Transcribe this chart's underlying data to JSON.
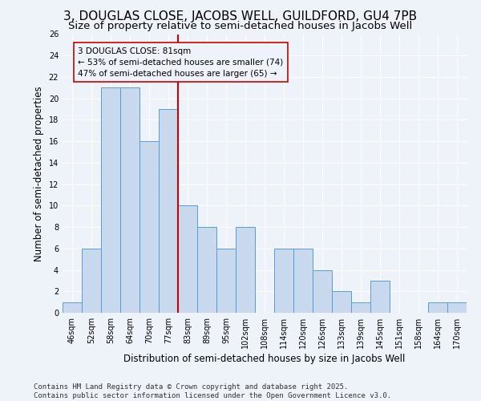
{
  "title": "3, DOUGLAS CLOSE, JACOBS WELL, GUILDFORD, GU4 7PB",
  "subtitle": "Size of property relative to semi-detached houses in Jacobs Well",
  "xlabel": "Distribution of semi-detached houses by size in Jacobs Well",
  "ylabel": "Number of semi-detached properties",
  "footnote": "Contains HM Land Registry data © Crown copyright and database right 2025.\nContains public sector information licensed under the Open Government Licence v3.0.",
  "categories": [
    "46sqm",
    "52sqm",
    "58sqm",
    "64sqm",
    "70sqm",
    "77sqm",
    "83sqm",
    "89sqm",
    "95sqm",
    "102sqm",
    "108sqm",
    "114sqm",
    "120sqm",
    "126sqm",
    "133sqm",
    "139sqm",
    "145sqm",
    "151sqm",
    "158sqm",
    "164sqm",
    "170sqm"
  ],
  "values": [
    1,
    6,
    21,
    21,
    16,
    19,
    10,
    8,
    6,
    8,
    0,
    6,
    6,
    4,
    2,
    1,
    3,
    0,
    0,
    1,
    1
  ],
  "bar_color": "#c9d9ed",
  "bar_edge_color": "#5b9bd5",
  "vline_color": "#cc0000",
  "annotation_title": "3 DOUGLAS CLOSE: 81sqm",
  "annotation_line1": "← 53% of semi-detached houses are smaller (74)",
  "annotation_line2": "47% of semi-detached houses are larger (65) →",
  "annotation_box_color": "#cc0000",
  "ylim": [
    0,
    26
  ],
  "yticks": [
    0,
    2,
    4,
    6,
    8,
    10,
    12,
    14,
    16,
    18,
    20,
    22,
    24,
    26
  ],
  "background_color": "#eef2f9",
  "grid_color": "#ffffff",
  "title_fontsize": 11,
  "subtitle_fontsize": 9.5,
  "axis_label_fontsize": 8.5,
  "tick_fontsize": 7,
  "footnote_fontsize": 6.5,
  "annotation_fontsize": 7.5
}
